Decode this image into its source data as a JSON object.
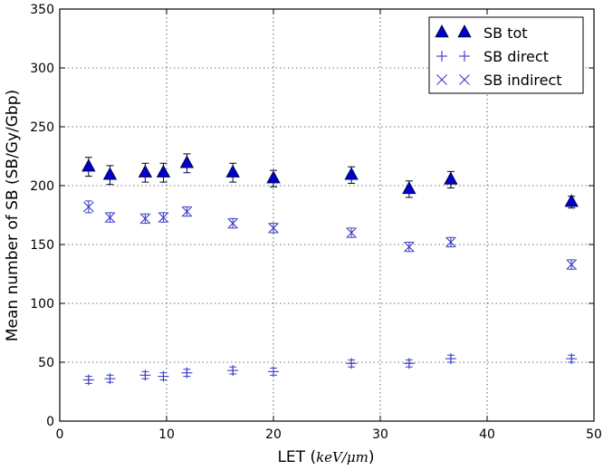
{
  "chart_data": {
    "type": "scatter",
    "title": "",
    "xlabel_prefix": "LET (",
    "xlabel_unit": "keV/μm",
    "xlabel_suffix": ")",
    "ylabel": "Mean number of SB (SB/Gy/Gbp)",
    "xlim": [
      0,
      50
    ],
    "ylim": [
      0,
      350
    ],
    "xticks": [
      0,
      10,
      20,
      30,
      40,
      50
    ],
    "yticks": [
      0,
      50,
      100,
      150,
      200,
      250,
      300,
      350
    ],
    "grid": true,
    "legend_position": "top-right",
    "x": [
      2.7,
      4.7,
      8.0,
      9.7,
      11.9,
      16.2,
      20.0,
      27.3,
      32.7,
      36.6,
      47.9
    ],
    "series": [
      {
        "name": "SB tot",
        "marker": "triangle",
        "color": "#0000CC",
        "values": [
          216,
          209,
          211,
          211,
          219,
          211,
          206,
          209,
          197,
          205,
          186
        ],
        "errors": [
          8,
          8,
          8,
          8,
          8,
          8,
          7,
          7,
          7,
          7,
          5
        ]
      },
      {
        "name": "SB direct",
        "marker": "plus",
        "color": "#3A3AC8",
        "values": [
          35,
          36,
          39,
          38,
          41,
          43,
          42,
          49,
          49,
          53,
          53
        ],
        "errors": [
          3,
          3,
          3,
          3,
          3,
          3,
          3,
          3,
          3,
          3,
          3
        ]
      },
      {
        "name": "SB indirect",
        "marker": "x",
        "color": "#3A3AC8",
        "values": [
          182,
          173,
          172,
          173,
          178,
          168,
          164,
          160,
          148,
          152,
          133
        ],
        "errors": [
          5,
          4,
          4,
          4,
          4,
          4,
          4,
          4,
          4,
          4,
          4
        ]
      }
    ]
  }
}
